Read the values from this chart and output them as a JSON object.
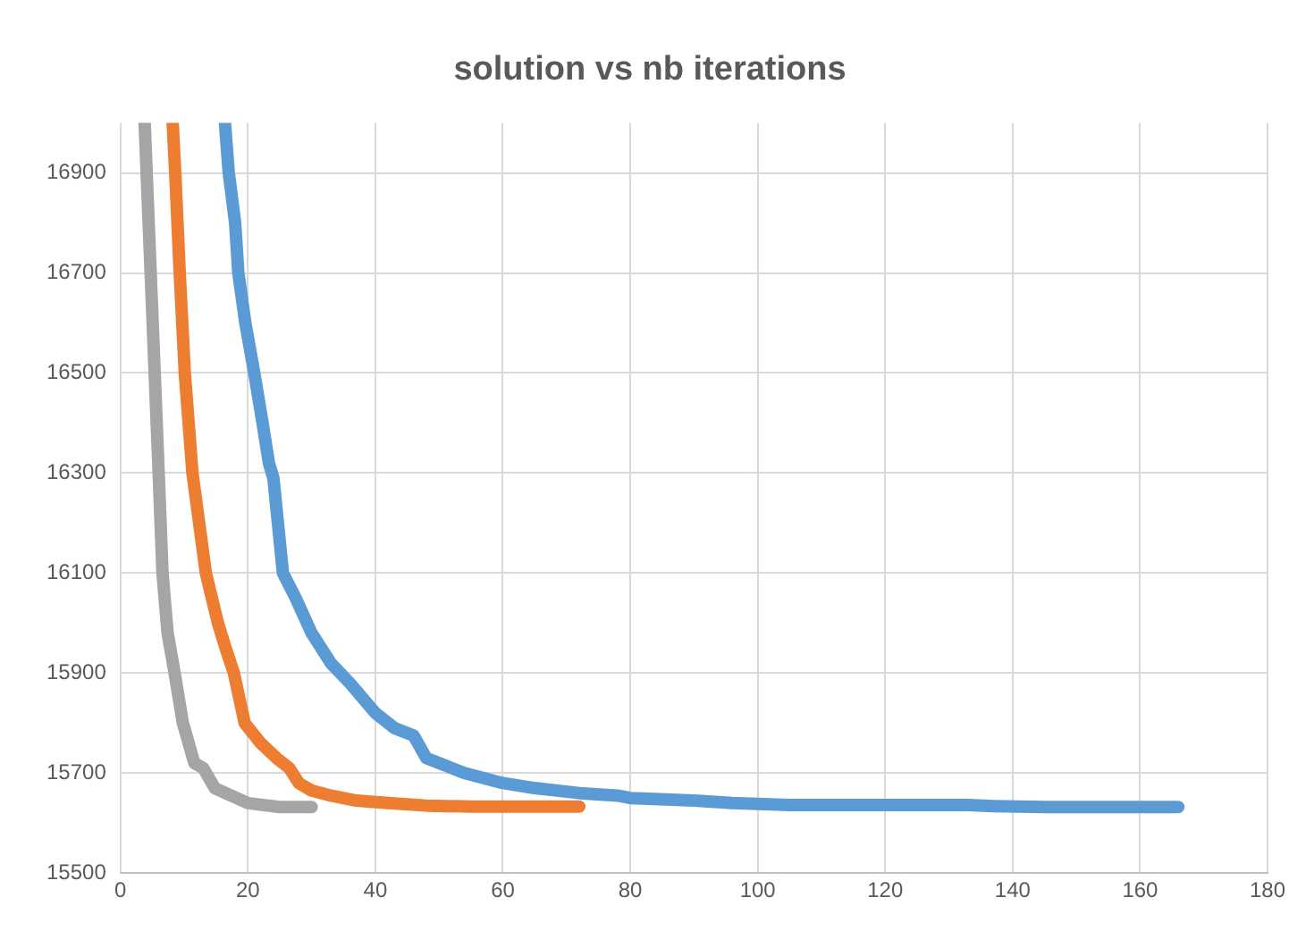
{
  "chart_data": {
    "type": "line",
    "title": "solution vs nb iterations",
    "xlim": [
      0,
      180
    ],
    "xticks": [
      0,
      20,
      40,
      60,
      80,
      100,
      120,
      140,
      160,
      180
    ],
    "ylim": [
      15500,
      17000
    ],
    "yticks": [
      15500,
      15700,
      15900,
      16100,
      16300,
      16500,
      16700,
      16900
    ],
    "grid": true,
    "legend": false,
    "marker": "none",
    "line_style": "solid",
    "series": [
      {
        "color": "#5b9bd5",
        "x": [
          16.4,
          17,
          18,
          18.5,
          19.6,
          21,
          22.3,
          23.3,
          24,
          25.5,
          27.5,
          30,
          33,
          36,
          40,
          43,
          46,
          48,
          50,
          54,
          60,
          65,
          72,
          78,
          80,
          90,
          96,
          105,
          133,
          137,
          145,
          166
        ],
        "values": [
          17000,
          16900,
          16800,
          16700,
          16600,
          16500,
          16400,
          16320,
          16290,
          16100,
          16050,
          15980,
          15920,
          15880,
          15820,
          15790,
          15775,
          15730,
          15720,
          15700,
          15680,
          15670,
          15660,
          15655,
          15650,
          15645,
          15640,
          15636,
          15636,
          15634,
          15632,
          15632
        ]
      },
      {
        "color": "#ed7d31",
        "x": [
          8.2,
          8.6,
          9.3,
          10.1,
          11.3,
          13.4,
          15.3,
          16.5,
          17.8,
          19.5,
          22,
          24.5,
          26.5,
          28,
          30,
          33,
          37,
          42,
          48,
          55,
          72
        ],
        "values": [
          17000,
          16900,
          16700,
          16500,
          16300,
          16100,
          16000,
          15950,
          15900,
          15800,
          15760,
          15730,
          15710,
          15680,
          15665,
          15655,
          15645,
          15640,
          15635,
          15633,
          15633
        ]
      },
      {
        "color": "#a5a5a5",
        "x": [
          3.8,
          6,
          6.6,
          7.4,
          8.5,
          9.8,
          11.6,
          13,
          14.8,
          16.5,
          20,
          25,
          30
        ],
        "values": [
          17000,
          16300,
          16100,
          15980,
          15900,
          15800,
          15720,
          15710,
          15670,
          15660,
          15640,
          15632,
          15632
        ]
      }
    ]
  }
}
